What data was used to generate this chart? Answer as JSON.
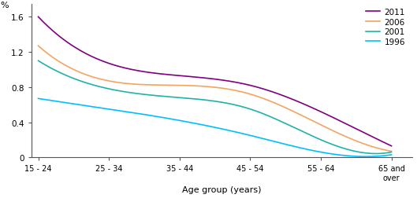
{
  "x_labels": [
    "15 - 24",
    "25 - 34",
    "35 - 44",
    "45 - 54",
    "55 - 64",
    "65 and\nover"
  ],
  "x_positions": [
    0,
    1,
    2,
    3,
    4,
    5
  ],
  "series": {
    "2011": {
      "color": "#800080",
      "values": [
        1.6,
        1.07,
        0.93,
        0.82,
        0.52,
        0.13
      ]
    },
    "2006": {
      "color": "#F4A460",
      "values": [
        1.27,
        0.87,
        0.82,
        0.72,
        0.37,
        0.07
      ]
    },
    "2001": {
      "color": "#20B2AA",
      "values": [
        1.1,
        0.78,
        0.68,
        0.55,
        0.2,
        0.06
      ]
    },
    "1996": {
      "color": "#00BFFF",
      "values": [
        0.67,
        0.55,
        0.42,
        0.25,
        0.06,
        0.03
      ]
    }
  },
  "ylabel": "%",
  "xlabel": "Age group (years)",
  "ylim": [
    0,
    1.75
  ],
  "yticks": [
    0,
    0.4,
    0.8,
    1.2,
    1.6
  ],
  "ytick_labels": [
    "0",
    "0.4",
    "0.8",
    "1.2",
    "1.6"
  ],
  "legend_order": [
    "2011",
    "2006",
    "2001",
    "1996"
  ],
  "background_color": "#ffffff",
  "figwidth": 5.29,
  "figheight": 2.53,
  "dpi": 100
}
